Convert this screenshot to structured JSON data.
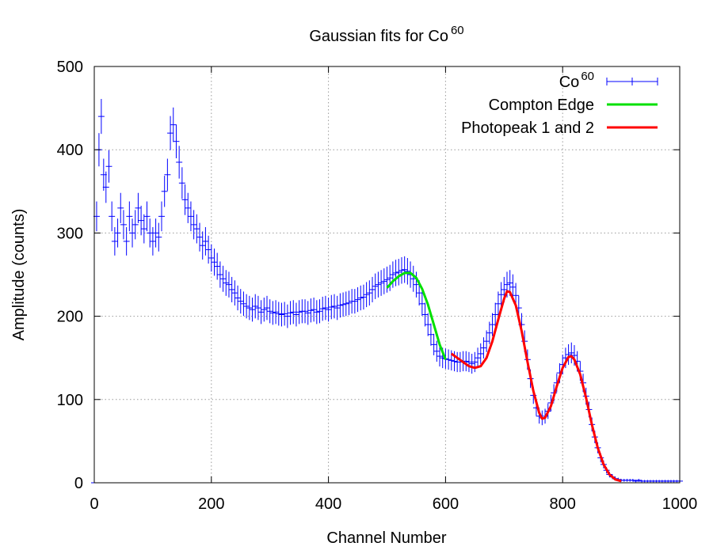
{
  "chart_data": {
    "type": "line",
    "title_base": "Gaussian fits for Co",
    "title_sup": "60",
    "xlabel": "Channel Number",
    "ylabel": "Amplitude (counts)",
    "xlim": [
      0,
      1000
    ],
    "ylim": [
      0,
      500
    ],
    "x_ticks": [
      "0",
      "200",
      "400",
      "600",
      "800",
      "1000"
    ],
    "y_ticks": [
      "0",
      "100",
      "200",
      "300",
      "400",
      "500"
    ],
    "grid": true,
    "legend_position": "top-right",
    "colors": {
      "data": "#0000ff",
      "compton": "#00e000",
      "photopeak": "#ff0000"
    },
    "series": [
      {
        "name_base": "Co",
        "name_sup": "60",
        "style": "points-with-errorbars",
        "points": [
          [
            0,
            0
          ],
          [
            4,
            320
          ],
          [
            8,
            400
          ],
          [
            12,
            440
          ],
          [
            16,
            370
          ],
          [
            20,
            355
          ],
          [
            25,
            380
          ],
          [
            30,
            320
          ],
          [
            35,
            290
          ],
          [
            40,
            300
          ],
          [
            45,
            330
          ],
          [
            50,
            310
          ],
          [
            55,
            290
          ],
          [
            60,
            320
          ],
          [
            65,
            300
          ],
          [
            70,
            310
          ],
          [
            75,
            330
          ],
          [
            80,
            315
          ],
          [
            85,
            305
          ],
          [
            90,
            320
          ],
          [
            95,
            300
          ],
          [
            100,
            290
          ],
          [
            105,
            300
          ],
          [
            110,
            295
          ],
          [
            115,
            320
          ],
          [
            120,
            350
          ],
          [
            125,
            370
          ],
          [
            130,
            420
          ],
          [
            135,
            430
          ],
          [
            140,
            410
          ],
          [
            145,
            385
          ],
          [
            150,
            360
          ],
          [
            155,
            340
          ],
          [
            160,
            330
          ],
          [
            165,
            320
          ],
          [
            170,
            310
          ],
          [
            175,
            305
          ],
          [
            180,
            295
          ],
          [
            185,
            285
          ],
          [
            190,
            290
          ],
          [
            195,
            280
          ],
          [
            200,
            270
          ],
          [
            205,
            265
          ],
          [
            210,
            260
          ],
          [
            215,
            250
          ],
          [
            220,
            245
          ],
          [
            225,
            240
          ],
          [
            230,
            238
          ],
          [
            235,
            232
          ],
          [
            240,
            228
          ],
          [
            245,
            222
          ],
          [
            250,
            218
          ],
          [
            255,
            215
          ],
          [
            260,
            212
          ],
          [
            265,
            210
          ],
          [
            270,
            208
          ],
          [
            275,
            212
          ],
          [
            280,
            210
          ],
          [
            285,
            205
          ],
          [
            290,
            208
          ],
          [
            295,
            210
          ],
          [
            300,
            206
          ],
          [
            305,
            204
          ],
          [
            310,
            205
          ],
          [
            315,
            203
          ],
          [
            320,
            202
          ],
          [
            325,
            203
          ],
          [
            330,
            200
          ],
          [
            335,
            204
          ],
          [
            340,
            205
          ],
          [
            345,
            202
          ],
          [
            350,
            205
          ],
          [
            355,
            206
          ],
          [
            360,
            206
          ],
          [
            365,
            204
          ],
          [
            370,
            207
          ],
          [
            375,
            208
          ],
          [
            380,
            205
          ],
          [
            385,
            206
          ],
          [
            390,
            209
          ],
          [
            395,
            210
          ],
          [
            400,
            208
          ],
          [
            405,
            211
          ],
          [
            410,
            212
          ],
          [
            415,
            210
          ],
          [
            420,
            213
          ],
          [
            425,
            214
          ],
          [
            430,
            215
          ],
          [
            435,
            216
          ],
          [
            440,
            218
          ],
          [
            445,
            218
          ],
          [
            450,
            220
          ],
          [
            455,
            222
          ],
          [
            460,
            223
          ],
          [
            465,
            226
          ],
          [
            470,
            228
          ],
          [
            475,
            232
          ],
          [
            480,
            236
          ],
          [
            485,
            238
          ],
          [
            490,
            240
          ],
          [
            495,
            242
          ],
          [
            500,
            244
          ],
          [
            505,
            246
          ],
          [
            510,
            250
          ],
          [
            515,
            252
          ],
          [
            520,
            253
          ],
          [
            525,
            255
          ],
          [
            530,
            256
          ],
          [
            535,
            254
          ],
          [
            540,
            250
          ],
          [
            545,
            245
          ],
          [
            550,
            238
          ],
          [
            555,
            228
          ],
          [
            560,
            215
          ],
          [
            565,
            202
          ],
          [
            570,
            190
          ],
          [
            575,
            178
          ],
          [
            580,
            166
          ],
          [
            585,
            158
          ],
          [
            590,
            152
          ],
          [
            595,
            150
          ],
          [
            600,
            149
          ],
          [
            605,
            148
          ],
          [
            610,
            147
          ],
          [
            615,
            146
          ],
          [
            620,
            145
          ],
          [
            625,
            145
          ],
          [
            630,
            146
          ],
          [
            635,
            146
          ],
          [
            640,
            145
          ],
          [
            645,
            143
          ],
          [
            650,
            145
          ],
          [
            655,
            150
          ],
          [
            660,
            155
          ],
          [
            665,
            162
          ],
          [
            670,
            170
          ],
          [
            675,
            180
          ],
          [
            680,
            190
          ],
          [
            685,
            202
          ],
          [
            690,
            215
          ],
          [
            695,
            226
          ],
          [
            700,
            232
          ],
          [
            705,
            238
          ],
          [
            710,
            240
          ],
          [
            715,
            235
          ],
          [
            720,
            225
          ],
          [
            725,
            210
          ],
          [
            730,
            190
          ],
          [
            735,
            170
          ],
          [
            740,
            148
          ],
          [
            745,
            125
          ],
          [
            750,
            105
          ],
          [
            755,
            90
          ],
          [
            760,
            80
          ],
          [
            765,
            78
          ],
          [
            770,
            80
          ],
          [
            775,
            86
          ],
          [
            780,
            96
          ],
          [
            785,
            108
          ],
          [
            790,
            120
          ],
          [
            795,
            132
          ],
          [
            800,
            142
          ],
          [
            805,
            150
          ],
          [
            810,
            154
          ],
          [
            815,
            156
          ],
          [
            820,
            153
          ],
          [
            825,
            146
          ],
          [
            830,
            134
          ],
          [
            835,
            120
          ],
          [
            840,
            104
          ],
          [
            845,
            88
          ],
          [
            850,
            70
          ],
          [
            855,
            55
          ],
          [
            860,
            42
          ],
          [
            865,
            30
          ],
          [
            870,
            22
          ],
          [
            875,
            15
          ],
          [
            880,
            10
          ],
          [
            885,
            7
          ],
          [
            890,
            5
          ],
          [
            895,
            4
          ],
          [
            900,
            3
          ],
          [
            905,
            3
          ],
          [
            910,
            3
          ],
          [
            915,
            3
          ],
          [
            920,
            3
          ],
          [
            925,
            2
          ],
          [
            930,
            3
          ],
          [
            935,
            2
          ],
          [
            940,
            2
          ],
          [
            945,
            2
          ],
          [
            950,
            2
          ],
          [
            955,
            2
          ],
          [
            960,
            2
          ],
          [
            965,
            2
          ],
          [
            970,
            2
          ],
          [
            975,
            2
          ],
          [
            980,
            2
          ],
          [
            985,
            2
          ],
          [
            990,
            2
          ],
          [
            995,
            2
          ],
          [
            1000,
            2
          ]
        ]
      },
      {
        "name": "Compton Edge",
        "style": "line",
        "points": [
          [
            500,
            234
          ],
          [
            510,
            242
          ],
          [
            520,
            248
          ],
          [
            530,
            252
          ],
          [
            540,
            252
          ],
          [
            550,
            246
          ],
          [
            560,
            233
          ],
          [
            570,
            214
          ],
          [
            580,
            190
          ],
          [
            590,
            166
          ],
          [
            600,
            148
          ]
        ]
      },
      {
        "name": "Photopeak 1 and 2",
        "style": "line",
        "points": [
          [
            610,
            155
          ],
          [
            620,
            150
          ],
          [
            630,
            145
          ],
          [
            640,
            140
          ],
          [
            650,
            138
          ],
          [
            660,
            140
          ],
          [
            670,
            150
          ],
          [
            680,
            170
          ],
          [
            690,
            196
          ],
          [
            700,
            221
          ],
          [
            705,
            230
          ],
          [
            710,
            229
          ],
          [
            720,
            213
          ],
          [
            730,
            182
          ],
          [
            740,
            145
          ],
          [
            750,
            110
          ],
          [
            760,
            84
          ],
          [
            765,
            77
          ],
          [
            770,
            78
          ],
          [
            780,
            92
          ],
          [
            790,
            116
          ],
          [
            800,
            138
          ],
          [
            810,
            151
          ],
          [
            815,
            152
          ],
          [
            820,
            148
          ],
          [
            830,
            130
          ],
          [
            840,
            102
          ],
          [
            850,
            70
          ],
          [
            860,
            42
          ],
          [
            870,
            22
          ],
          [
            880,
            10
          ],
          [
            890,
            4
          ],
          [
            900,
            2
          ]
        ]
      }
    ]
  }
}
